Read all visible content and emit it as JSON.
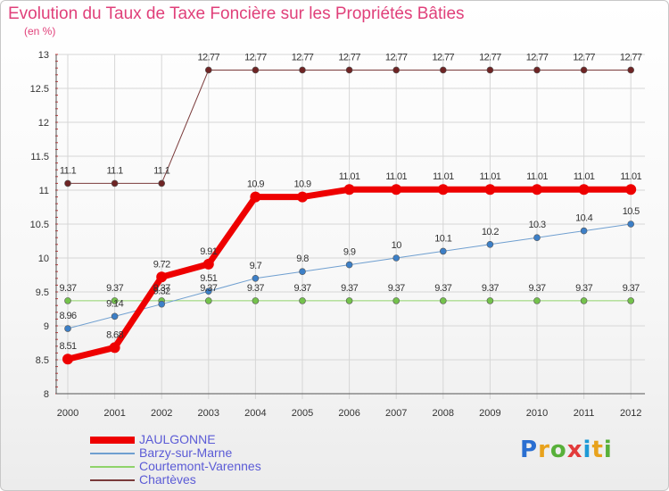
{
  "title": "Evolution du Taux de Taxe Foncière sur les Propriétés Bâties",
  "subtitle": "(en %)",
  "brand": {
    "text": "Proxiti",
    "letter_colors": [
      "#2a6fd1",
      "#e8a21c",
      "#58b03a",
      "#e23b3b",
      "#1e9ad6",
      "#e8a21c",
      "#58b03a"
    ]
  },
  "chart_data": {
    "type": "line",
    "title": "Evolution du Taux de Taxe Foncière sur les Propriétés Bâties",
    "subtitle": "(en %)",
    "xlabel": "",
    "ylabel": "",
    "x": [
      "2000",
      "2001",
      "2002",
      "2003",
      "2004",
      "2005",
      "2006",
      "2007",
      "2008",
      "2009",
      "2010",
      "2011",
      "2012"
    ],
    "ylim": [
      8,
      13
    ],
    "yticks": [
      "8",
      "8.5",
      "9",
      "9.5",
      "10",
      "10.5",
      "11",
      "11.5",
      "12",
      "12.5",
      "13"
    ],
    "grid": true,
    "legend_position": "bottom-left",
    "series": [
      {
        "name": "Chartèves",
        "color": "#7a3a3a",
        "marker_color": "#6e2424",
        "values": [
          11.1,
          11.1,
          11.1,
          12.77,
          12.77,
          12.77,
          12.77,
          12.77,
          12.77,
          12.77,
          12.77,
          12.77,
          12.77
        ],
        "labels": [
          "11.1",
          "11.1",
          "11.1",
          "12.77",
          "12.77",
          "12.77",
          "12.77",
          "12.77",
          "12.77",
          "12.77",
          "12.77",
          "12.77",
          "12.77"
        ],
        "width": 1
      },
      {
        "name": "Courtemont-Varennes",
        "color": "#8fd36a",
        "marker_color": "#74c24c",
        "values": [
          9.37,
          9.37,
          9.37,
          9.37,
          9.37,
          9.37,
          9.37,
          9.37,
          9.37,
          9.37,
          9.37,
          9.37,
          9.37
        ],
        "labels": [
          "9.37",
          "9.37",
          "9.37",
          "9.37",
          "9.37",
          "9.37",
          "9.37",
          "9.37",
          "9.37",
          "9.37",
          "9.37",
          "9.37",
          "9.37"
        ],
        "width": 1
      },
      {
        "name": "Barzy-sur-Marne",
        "color": "#6f9fd0",
        "marker_color": "#3c7fc7",
        "values": [
          8.96,
          9.14,
          9.32,
          9.51,
          9.7,
          9.8,
          9.9,
          10,
          10.1,
          10.2,
          10.3,
          10.4,
          10.5
        ],
        "labels": [
          "8.96",
          "9.14",
          "9.32",
          "9.51",
          "9.7",
          "9.8",
          "9.9",
          "10",
          "10.1",
          "10.2",
          "10.3",
          "10.4",
          "10.5"
        ],
        "width": 1
      },
      {
        "name": "JAULGONNE",
        "color": "#ee0000",
        "marker_color": "#ee0000",
        "values": [
          8.51,
          8.68,
          9.72,
          9.91,
          10.9,
          10.9,
          11.01,
          11.01,
          11.01,
          11.01,
          11.01,
          11.01,
          11.01
        ],
        "labels": [
          "8.51",
          "8.68",
          "9.72",
          "9.91",
          "10.9",
          "10.9",
          "11.01",
          "11.01",
          "11.01",
          "11.01",
          "11.01",
          "11.01",
          "11.01"
        ],
        "width": 7
      }
    ],
    "legend": [
      "JAULGONNE",
      "Barzy-sur-Marne",
      "Courtemont-Varennes",
      "Chartèves"
    ]
  }
}
